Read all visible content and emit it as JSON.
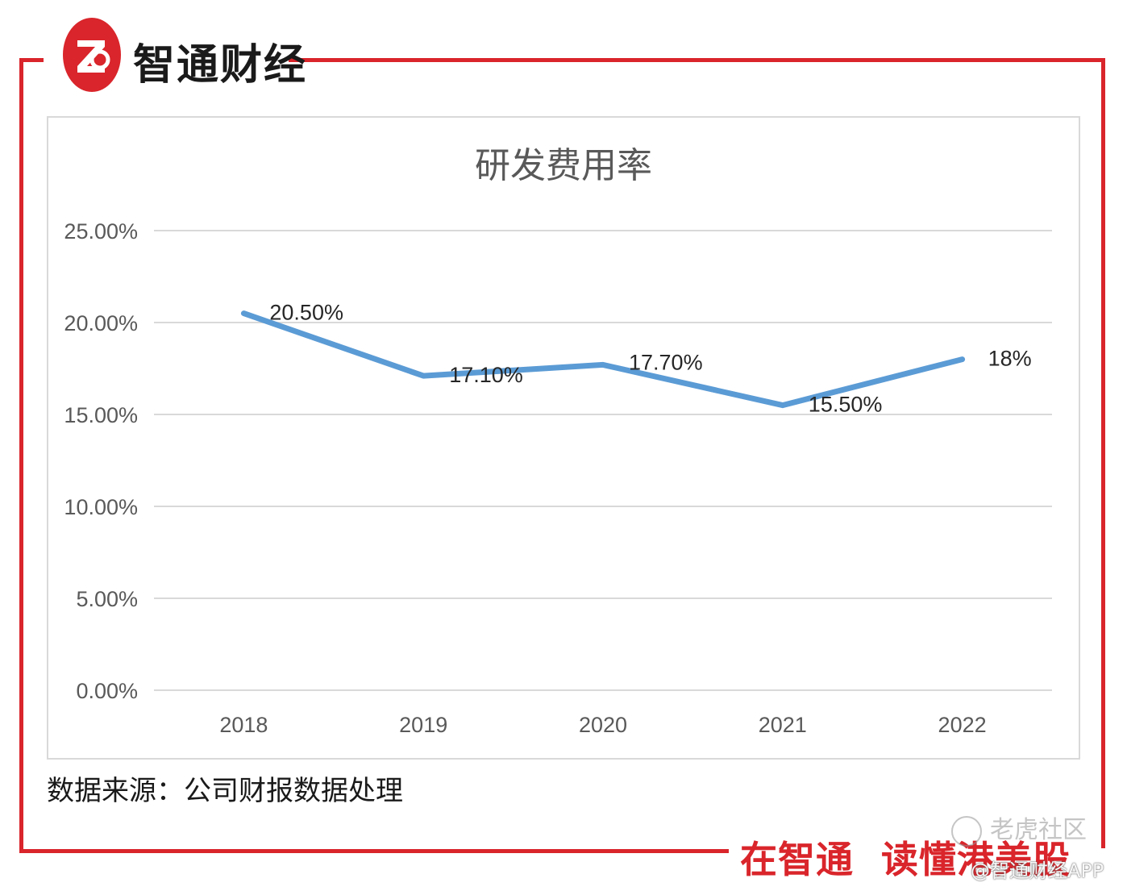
{
  "brand": {
    "logo_glyph": "ZT",
    "name": "智通财经",
    "color": "#d9252b"
  },
  "source_note": "数据来源：公司财报数据处理",
  "slogan": {
    "part1": "在智通",
    "part2": "读懂港美股"
  },
  "watermarks": {
    "community": "老虎社区",
    "app": "@智通财经APP"
  },
  "chart_data": {
    "type": "line",
    "title": "研发费用率",
    "xlabel": "",
    "ylabel": "",
    "categories": [
      "2018",
      "2019",
      "2020",
      "2021",
      "2022"
    ],
    "series": [
      {
        "values": [
          20.5,
          17.1,
          17.7,
          15.5,
          18.0
        ],
        "data_labels": [
          "20.50%",
          "17.10%",
          "17.70%",
          "15.50%",
          "18%"
        ],
        "color": "#5b9bd5"
      }
    ],
    "ylim": [
      0,
      25
    ],
    "y_ticks": [
      {
        "value": 0,
        "label": "0.00%"
      },
      {
        "value": 5,
        "label": "5.00%"
      },
      {
        "value": 10,
        "label": "10.00%"
      },
      {
        "value": 15,
        "label": "15.00%"
      },
      {
        "value": 20,
        "label": "20.00%"
      },
      {
        "value": 25,
        "label": "25.00%"
      }
    ],
    "grid": true,
    "legend": "none"
  }
}
